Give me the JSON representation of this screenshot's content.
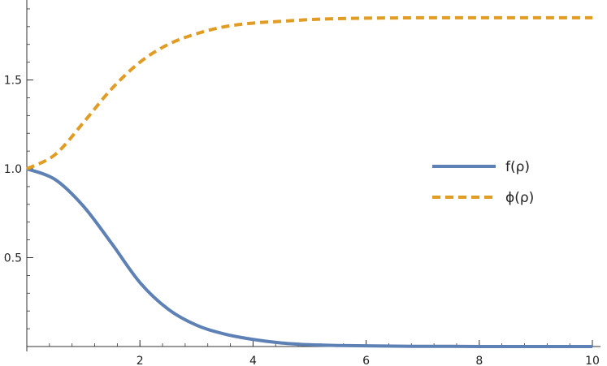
{
  "chart_data": {
    "type": "line",
    "title": "",
    "xlabel": "",
    "ylabel": "",
    "xlim": [
      0,
      10
    ],
    "ylim": [
      0,
      1.95
    ],
    "x_ticks": [
      2,
      4,
      6,
      8,
      10
    ],
    "x_tick_labels": [
      "2",
      "4",
      "6",
      "8",
      "10"
    ],
    "y_ticks": [
      0.5,
      1.0,
      1.5
    ],
    "y_tick_labels": [
      "0.5",
      "1.0",
      "1.5"
    ],
    "grid": false,
    "legend_position": "right",
    "x": [
      0,
      0.5,
      1,
      1.5,
      2,
      2.5,
      3,
      3.5,
      4,
      4.5,
      5,
      5.5,
      6,
      6.5,
      7,
      7.5,
      8,
      8.5,
      9,
      9.5,
      10
    ],
    "series": [
      {
        "name": "f(ρ)",
        "color": "#5e81b5",
        "style": "solid",
        "values": [
          1.0,
          0.94,
          0.79,
          0.58,
          0.36,
          0.21,
          0.12,
          0.07,
          0.04,
          0.02,
          0.01,
          0.006,
          0.004,
          0.002,
          0.001,
          0.001,
          0.0,
          0.0,
          0.0,
          0.0,
          0.0
        ]
      },
      {
        "name": "ϕ(ρ)",
        "color": "#e19c24",
        "style": "dashed",
        "values": [
          1.0,
          1.08,
          1.26,
          1.45,
          1.6,
          1.7,
          1.76,
          1.8,
          1.82,
          1.83,
          1.84,
          1.845,
          1.848,
          1.849,
          1.85,
          1.85,
          1.85,
          1.85,
          1.85,
          1.85,
          1.85
        ]
      }
    ]
  }
}
